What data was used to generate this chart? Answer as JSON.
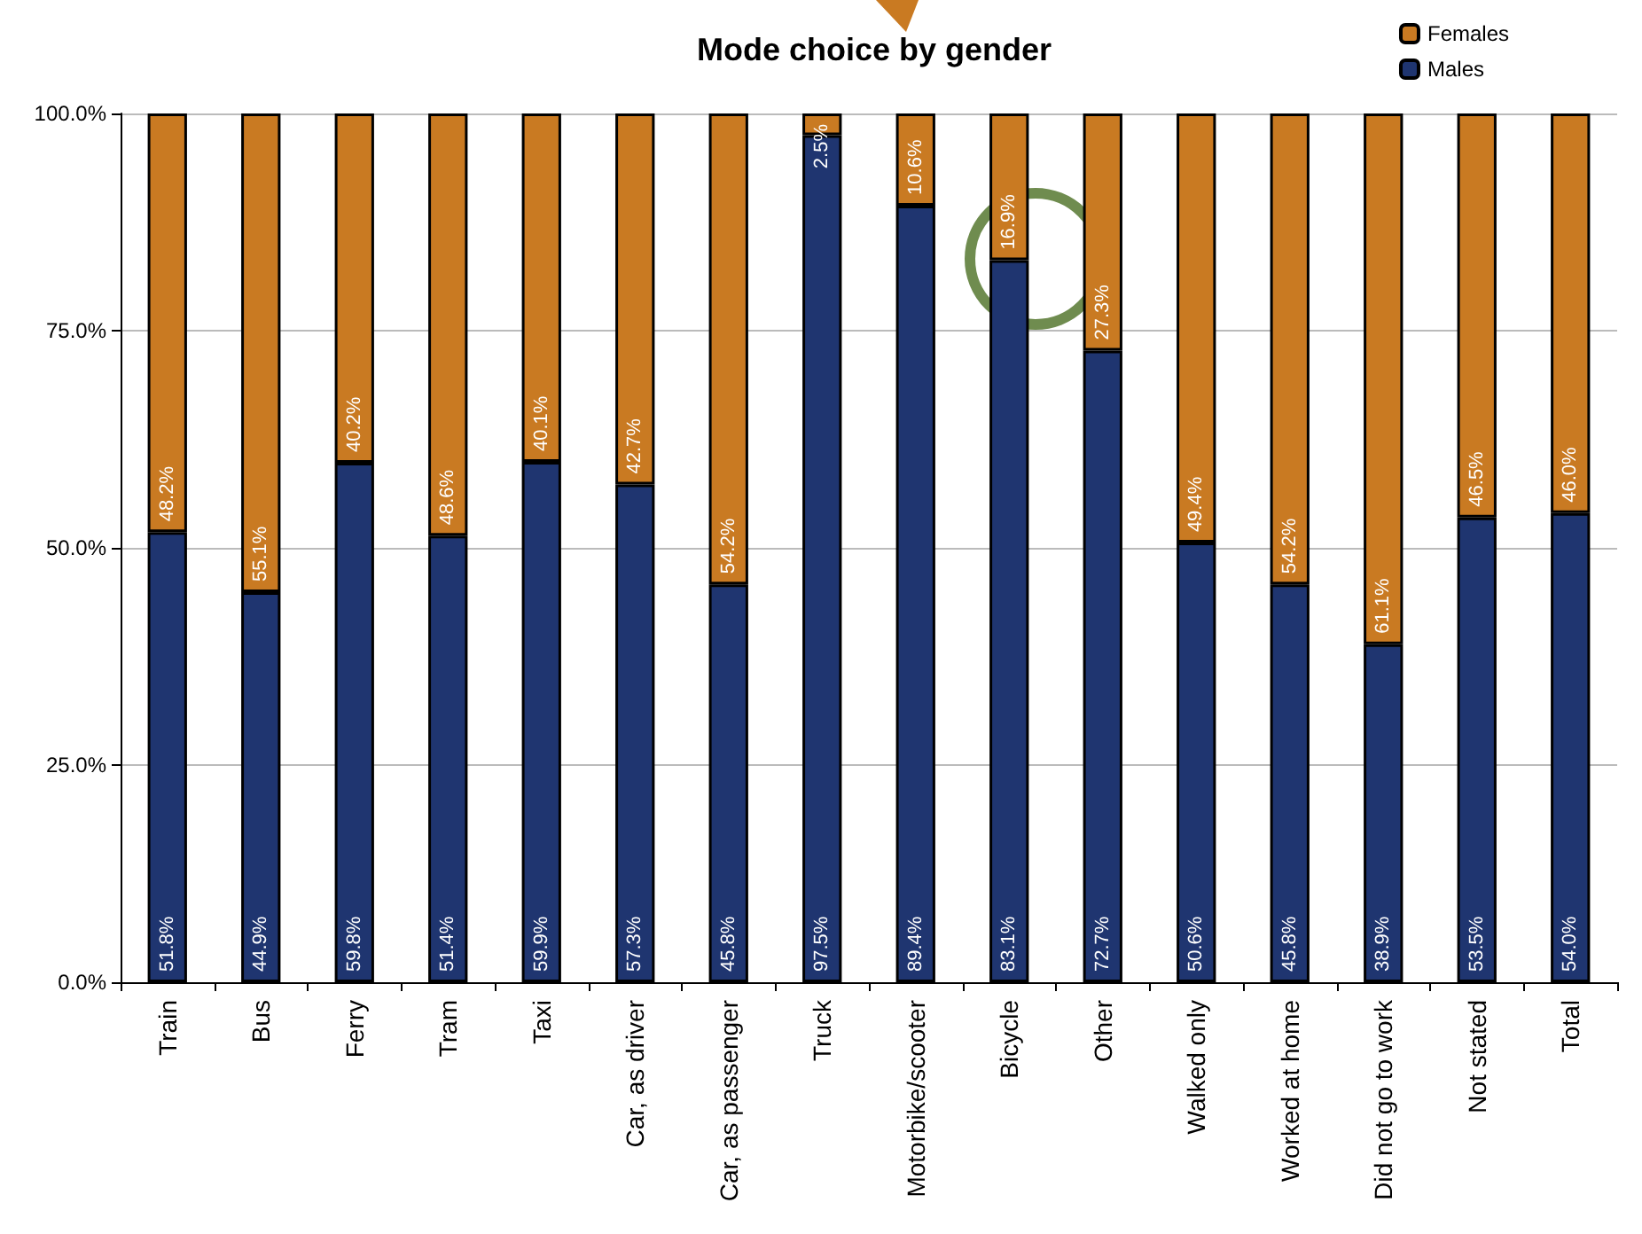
{
  "chart_data": {
    "type": "bar",
    "title": "Mode choice by gender",
    "stacked": true,
    "categories": [
      "Train",
      "Bus",
      "Ferry",
      "Tram",
      "Taxi",
      "Car, as driver",
      "Car, as passenger",
      "Truck",
      "Motorbike/scooter",
      "Bicycle",
      "Other",
      "Walked only",
      "Worked at home",
      "Did not go to work",
      "Not stated",
      "Total"
    ],
    "series": [
      {
        "name": "Males",
        "color": "#1f3570",
        "values": [
          51.8,
          44.9,
          59.8,
          51.4,
          59.9,
          57.3,
          45.8,
          97.5,
          89.4,
          83.1,
          72.7,
          50.6,
          45.8,
          38.9,
          53.5,
          54.0
        ],
        "value_labels": [
          "51.8%",
          "44.9%",
          "59.8%",
          "51.4%",
          "59.9%",
          "57.3%",
          "45.8%",
          "97.5%",
          "89.4%",
          "83.1%",
          "72.7%",
          "50.6%",
          "45.8%",
          "38.9%",
          "53.5%",
          "54.0%"
        ]
      },
      {
        "name": "Females",
        "color": "#c97a22",
        "values": [
          48.2,
          55.1,
          40.2,
          48.6,
          40.1,
          42.7,
          54.2,
          2.5,
          10.6,
          16.9,
          27.3,
          49.4,
          54.2,
          61.1,
          46.5,
          46.0
        ],
        "value_labels": [
          "48.2%",
          "55.1%",
          "40.2%",
          "48.6%",
          "40.1%",
          "42.7%",
          "54.2%",
          "2.5%",
          "10.6%",
          "16.9%",
          "27.3%",
          "49.4%",
          "54.2%",
          "61.1%",
          "46.5%",
          "46.0%"
        ]
      }
    ],
    "ylim": [
      0,
      100
    ],
    "yticks": [
      {
        "value": 0,
        "label": "0.0%"
      },
      {
        "value": 25,
        "label": "25.0%"
      },
      {
        "value": 50,
        "label": "50.0%"
      },
      {
        "value": 75,
        "label": "75.0%"
      },
      {
        "value": 100,
        "label": "100.0%"
      }
    ],
    "grid": "y",
    "legend": "top right"
  }
}
